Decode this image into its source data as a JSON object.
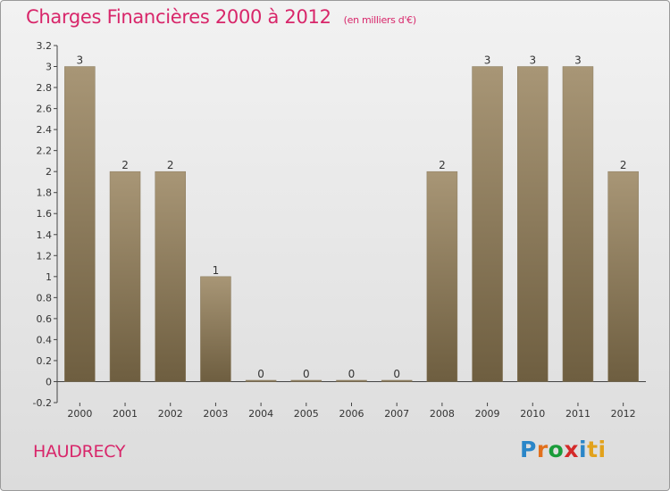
{
  "header": {
    "title": "Charges Financières 2000 à 2012",
    "subtitle": "(en milliers d'€)"
  },
  "footer": {
    "town": "HAUDRECY",
    "logo_letters": [
      "P",
      "r",
      "o",
      "x",
      "i",
      "ti"
    ]
  },
  "colors": {
    "title": "#d8266a",
    "bar_top": "#a89676",
    "bar_bottom": "#6e5e40"
  },
  "chart_data": {
    "type": "bar",
    "categories": [
      "2000",
      "2001",
      "2002",
      "2003",
      "2004",
      "2005",
      "2006",
      "2007",
      "2008",
      "2009",
      "2010",
      "2011",
      "2012"
    ],
    "values": [
      3,
      2,
      2,
      1,
      0,
      0,
      0,
      0,
      2,
      3,
      3,
      3,
      2
    ],
    "data_labels": [
      "3",
      "2",
      "2",
      "1",
      "0",
      "0",
      "0",
      "0",
      "2",
      "3",
      "3",
      "3",
      "2"
    ],
    "yticks": [
      "3.2",
      "3",
      "2.8",
      "2.6",
      "2.4",
      "2.2",
      "2",
      "1.8",
      "1.6",
      "1.4",
      "1.2",
      "1",
      "0.8",
      "0.6",
      "0.4",
      "0.2",
      "0",
      "-0.2"
    ],
    "ytick_values": [
      3.2,
      3,
      2.8,
      2.6,
      2.4,
      2.2,
      2,
      1.8,
      1.6,
      1.4,
      1.2,
      1,
      0.8,
      0.6,
      0.4,
      0.2,
      0,
      -0.2
    ],
    "ylim": [
      -0.2,
      3.2
    ],
    "grid": false,
    "legend": "none"
  }
}
